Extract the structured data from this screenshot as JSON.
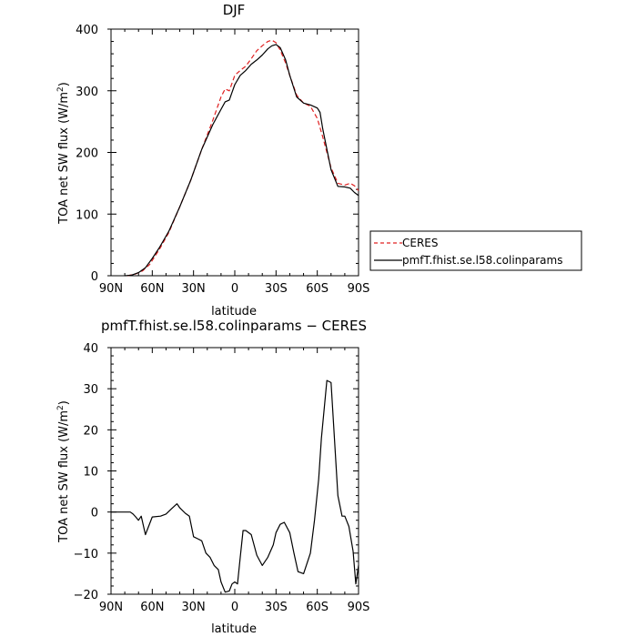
{
  "chart_data": [
    {
      "type": "line",
      "title": "DJF",
      "xlabel": "latitude",
      "ylabel": "TOA net SW flux (W/m²)",
      "ylabel_parts": [
        "TOA net SW flux (W/m",
        "2",
        ")"
      ],
      "xlim": [
        90,
        -90
      ],
      "ylim": [
        0,
        400
      ],
      "x_ticks": [
        90,
        60,
        30,
        0,
        -30,
        -60,
        -90
      ],
      "x_tick_labels": [
        "90N",
        "60N",
        "30N",
        "0",
        "30S",
        "60S",
        "90S"
      ],
      "y_ticks": [
        0,
        100,
        200,
        300,
        400
      ],
      "y_tick_labels": [
        "0",
        "100",
        "200",
        "300",
        "400"
      ],
      "grid": false,
      "legend": "outside-right",
      "series": [
        {
          "name": "CERES",
          "color": "#e02020",
          "dash": true,
          "x": [
            78,
            72,
            67,
            62,
            55,
            48,
            40,
            32,
            24,
            16,
            10,
            7,
            4,
            0,
            -4,
            -8,
            -12,
            -16,
            -20,
            -24,
            -27,
            -30,
            -33,
            -37,
            -40,
            -45,
            -50,
            -55,
            -60,
            -64,
            -70,
            -75,
            -80,
            -84,
            -87,
            -90
          ],
          "y": [
            0,
            3,
            8,
            18,
            42,
            70,
            112,
            155,
            205,
            252,
            290,
            303,
            300,
            325,
            333,
            340,
            352,
            365,
            373,
            380,
            382,
            378,
            366,
            345,
            325,
            293,
            280,
            275,
            255,
            225,
            175,
            150,
            147,
            150,
            146,
            138
          ]
        },
        {
          "name": "pmfT.fhist.se.l58.colinparams",
          "color": "#000000",
          "dash": false,
          "x": [
            80,
            75,
            70,
            65,
            60,
            55,
            48,
            40,
            32,
            24,
            16,
            10,
            7,
            4,
            0,
            -4,
            -8,
            -12,
            -16,
            -20,
            -24,
            -27,
            -30,
            -33,
            -37,
            -40,
            -45,
            -50,
            -55,
            -60,
            -62,
            -64,
            -70,
            -75,
            -80,
            -84,
            -87,
            -90
          ],
          "y": [
            0,
            1,
            5,
            13,
            28,
            45,
            72,
            112,
            155,
            205,
            245,
            270,
            282,
            285,
            310,
            325,
            333,
            343,
            350,
            358,
            368,
            373,
            375,
            370,
            350,
            325,
            290,
            280,
            277,
            272,
            265,
            238,
            172,
            145,
            144,
            142,
            135,
            130
          ]
        }
      ]
    },
    {
      "type": "line",
      "title": "pmfT.fhist.se.l58.colinparams − CERES",
      "xlabel": "latitude",
      "ylabel": "TOA net SW flux (W/m²)",
      "ylabel_parts": [
        "TOA net SW flux (W/m",
        "2",
        ")"
      ],
      "xlim": [
        90,
        -90
      ],
      "ylim": [
        -20,
        40
      ],
      "x_ticks": [
        90,
        60,
        30,
        0,
        -30,
        -60,
        -90
      ],
      "x_tick_labels": [
        "90N",
        "60N",
        "30N",
        "0",
        "30S",
        "60S",
        "90S"
      ],
      "y_ticks": [
        -20,
        -10,
        0,
        10,
        20,
        30,
        40
      ],
      "y_tick_labels": [
        "−20",
        "−10",
        "0",
        "10",
        "20",
        "30",
        "40"
      ],
      "grid": false,
      "series": [
        {
          "name": "",
          "color": "#000000",
          "dash": false,
          "x": [
            90,
            85,
            80,
            76,
            74,
            72,
            70,
            68,
            65,
            60,
            54,
            50,
            46,
            42,
            40,
            36,
            33,
            30,
            27,
            24,
            21,
            18,
            15,
            12,
            10,
            7,
            4,
            2,
            0,
            -2,
            -4,
            -6,
            -8,
            -12,
            -16,
            -20,
            -24,
            -28,
            -30,
            -33,
            -36,
            -40,
            -43,
            -46,
            -50,
            -55,
            -58,
            -61,
            -63,
            -65,
            -67,
            -70,
            -73,
            -75,
            -78,
            -80,
            -83,
            -86,
            -88,
            -90
          ],
          "y": [
            0,
            0,
            0,
            0,
            -0.5,
            -1.2,
            -2,
            -1,
            -5.5,
            -1.2,
            -1,
            -0.5,
            0.8,
            2,
            1,
            -0.3,
            -1,
            -6,
            -6.5,
            -7,
            -10,
            -11,
            -13,
            -14,
            -17,
            -19.5,
            -19.2,
            -17.5,
            -17,
            -17.5,
            -11,
            -4.5,
            -4.5,
            -5.5,
            -10.5,
            -13,
            -11,
            -8,
            -5,
            -3,
            -2.5,
            -5,
            -10,
            -14.5,
            -15,
            -10,
            -2,
            8,
            18,
            25,
            32,
            31.5,
            15,
            4,
            -1,
            -1,
            -3.5,
            -9.5,
            -17.5,
            -13
          ]
        }
      ]
    }
  ]
}
